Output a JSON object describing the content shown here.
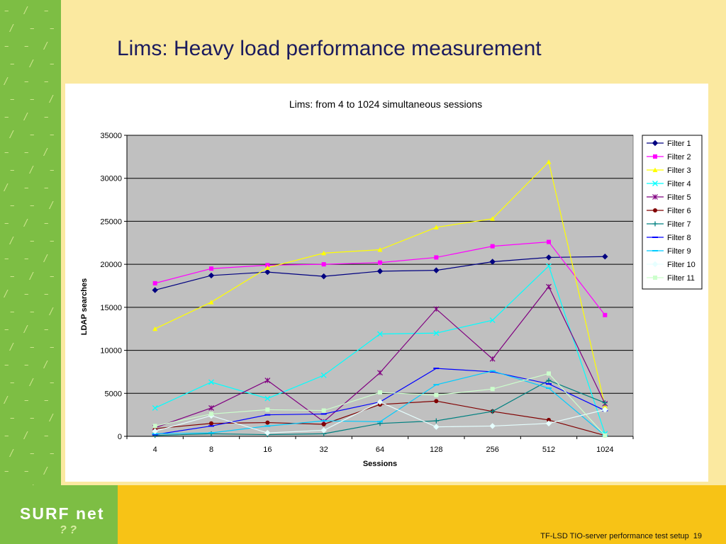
{
  "slide": {
    "title": "Lims: Heavy load performance measurement",
    "footer_text": "TF-LSD TIO-server performance test setup",
    "page_number": "19",
    "logo_text": "SURF net",
    "logo_mark": "? ?"
  },
  "colors": {
    "side_green": "#7DBE44",
    "slide_bg": "#FBE9A0",
    "footer_bar": "#F7C316",
    "plot_bg": "#C0C0C0"
  },
  "chart_data": {
    "type": "line",
    "title": "Lims: from 4 to 1024 simultaneous sessions",
    "xlabel": "Sessions",
    "ylabel": "LDAP searches",
    "categories": [
      "4",
      "8",
      "16",
      "32",
      "64",
      "128",
      "256",
      "512",
      "1024"
    ],
    "ylim": [
      0,
      35000
    ],
    "yticks": [
      "0",
      "5000",
      "10000",
      "15000",
      "20000",
      "25000",
      "30000",
      "35000"
    ],
    "grid": true,
    "legend_position": "right",
    "series": [
      {
        "name": "Filter 1",
        "color": "#000080",
        "marker": "diamond",
        "values": [
          17000,
          18700,
          19100,
          18600,
          19200,
          19300,
          20300,
          20800,
          20900
        ]
      },
      {
        "name": "Filter 2",
        "color": "#FF00FF",
        "marker": "square",
        "values": [
          17800,
          19500,
          19900,
          20000,
          20200,
          20800,
          22100,
          22600,
          14100
        ]
      },
      {
        "name": "Filter 3",
        "color": "#FFFF00",
        "marker": "triangle",
        "values": [
          12500,
          15600,
          19600,
          21300,
          21700,
          24300,
          25300,
          31900,
          3500
        ]
      },
      {
        "name": "Filter 4",
        "color": "#00FFFF",
        "marker": "x",
        "values": [
          3300,
          6300,
          4400,
          7100,
          11900,
          12000,
          13500,
          19800,
          300
        ]
      },
      {
        "name": "Filter 5",
        "color": "#800080",
        "marker": "star",
        "values": [
          1000,
          3300,
          6500,
          1700,
          7400,
          14800,
          9000,
          17400,
          3800
        ]
      },
      {
        "name": "Filter 6",
        "color": "#800000",
        "marker": "circle",
        "values": [
          900,
          1500,
          1600,
          1400,
          3700,
          4100,
          2900,
          1900,
          100
        ]
      },
      {
        "name": "Filter 7",
        "color": "#008080",
        "marker": "plus",
        "values": [
          100,
          300,
          200,
          300,
          1500,
          1800,
          2900,
          6500,
          3900
        ]
      },
      {
        "name": "Filter 8",
        "color": "#0000FF",
        "marker": "dash",
        "values": [
          200,
          1200,
          2500,
          2600,
          4000,
          7900,
          7500,
          6100,
          3000
        ]
      },
      {
        "name": "Filter 9",
        "color": "#00CCFF",
        "marker": "dash",
        "values": [
          300,
          400,
          1200,
          1800,
          1700,
          6000,
          7600,
          5600,
          100
        ]
      },
      {
        "name": "Filter 10",
        "color": "#E6FFFF",
        "marker": "diamond",
        "values": [
          600,
          2400,
          400,
          700,
          4000,
          1100,
          1200,
          1500,
          3100
        ]
      },
      {
        "name": "Filter 11",
        "color": "#CCFFCC",
        "marker": "square",
        "values": [
          1200,
          2600,
          3100,
          3000,
          5100,
          4800,
          5500,
          7300,
          100
        ]
      }
    ]
  }
}
